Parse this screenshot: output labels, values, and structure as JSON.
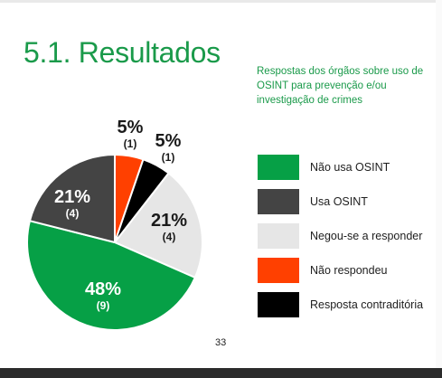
{
  "title": "5.1. Resultados",
  "subtitle": "Respostas dos órgãos sobre uso de OSINT para prevenção e/ou investigação de crimes",
  "page_number": "33",
  "colors": {
    "accent": "#1a9a4a",
    "slices": [
      "#ff4000",
      "#000000",
      "#e6e6e6",
      "#06a046",
      "#444444"
    ]
  },
  "chart_data": {
    "type": "pie",
    "slices": [
      {
        "label": "Não respondeu",
        "percent_label": "5%",
        "count_label": "(1)",
        "value": 1,
        "color": "#ff4000"
      },
      {
        "label": "Resposta contraditória",
        "percent_label": "5%",
        "count_label": "(1)",
        "value": 1,
        "color": "#000000"
      },
      {
        "label": "Negou-se a responder",
        "percent_label": "21%",
        "count_label": "(4)",
        "value": 4,
        "color": "#e6e6e6"
      },
      {
        "label": "Não usa OSINT",
        "percent_label": "48%",
        "count_label": "(9)",
        "value": 9,
        "color": "#06a046"
      },
      {
        "label": "Usa OSINT",
        "percent_label": "21%",
        "count_label": "(4)",
        "value": 4,
        "color": "#444444"
      }
    ],
    "legend": [
      "Não usa OSINT",
      "Usa OSINT",
      "Negou-se a responder",
      "Não respondeu",
      "Resposta contraditória"
    ],
    "legend_colors": [
      "#06a046",
      "#444444",
      "#e6e6e6",
      "#ff4000",
      "#000000"
    ]
  }
}
